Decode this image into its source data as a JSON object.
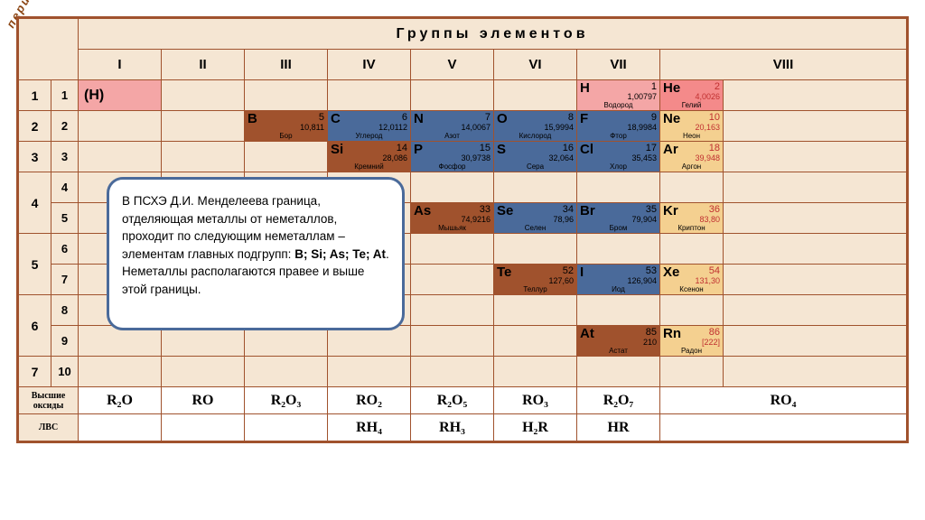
{
  "labels": {
    "period": "период",
    "groups_header": "Группы элементов",
    "oxides": "Высшие оксиды",
    "lvs": "ЛВС",
    "h_placeholder": "(H)"
  },
  "group_numerals": [
    "I",
    "II",
    "III",
    "IV",
    "V",
    "VI",
    "VII",
    "VIII"
  ],
  "period_rows": [
    {
      "p": "1",
      "r": "1"
    },
    {
      "p": "2",
      "r": "2"
    },
    {
      "p": "3",
      "r": "3"
    },
    {
      "p": "4",
      "r": [
        "4",
        "5"
      ]
    },
    {
      "p": "5",
      "r": [
        "6",
        "7"
      ]
    },
    {
      "p": "6",
      "r": [
        "8",
        "9"
      ]
    },
    {
      "p": "7",
      "r": "10"
    }
  ],
  "colors": {
    "blank": "#f5e6d3",
    "pink": "#f4a6a6",
    "brown": "#a0522d",
    "blue": "#4a6a9a",
    "noble": "#f4d090",
    "border": "#a0522d"
  },
  "callout_text": "В ПСХЭ Д.И. Менделеева граница, отделяющая металлы от неметаллов, проходит по следующим неметаллам – элементам главных подгрупп: B; Si; As; Te; At. Неметаллы располагаются правее и выше этой границы.",
  "elements": {
    "H": {
      "sym": "H",
      "num": "1",
      "mass": "1,00797",
      "name": "Водород",
      "bg": "#f4a6a6"
    },
    "He": {
      "sym": "He",
      "num": "2",
      "mass": "4,0026",
      "name": "Гелий",
      "bg": "#f48a8a",
      "noble": true
    },
    "B": {
      "sym": "B",
      "num": "5",
      "mass": "10,811",
      "name": "Бор",
      "bg": "#a0522d",
      "fg": "#000"
    },
    "C": {
      "sym": "C",
      "num": "6",
      "mass": "12,0112",
      "name": "Углерод",
      "bg": "#4a6a9a",
      "fg": "#000"
    },
    "N": {
      "sym": "N",
      "num": "7",
      "mass": "14,0067",
      "name": "Азот",
      "bg": "#4a6a9a"
    },
    "O": {
      "sym": "O",
      "num": "8",
      "mass": "15,9994",
      "name": "Кислород",
      "bg": "#4a6a9a"
    },
    "F": {
      "sym": "F",
      "num": "9",
      "mass": "18,9984",
      "name": "Фтор",
      "bg": "#4a6a9a"
    },
    "Ne": {
      "sym": "Ne",
      "num": "10",
      "mass": "20,163",
      "name": "Неон",
      "bg": "#f4d090",
      "noble": true
    },
    "Si": {
      "sym": "Si",
      "num": "14",
      "mass": "28,086",
      "name": "Кремний",
      "bg": "#a0522d"
    },
    "P": {
      "sym": "P",
      "num": "15",
      "mass": "30,9738",
      "name": "Фосфор",
      "bg": "#4a6a9a"
    },
    "S": {
      "sym": "S",
      "num": "16",
      "mass": "32,064",
      "name": "Сера",
      "bg": "#4a6a9a"
    },
    "Cl": {
      "sym": "Cl",
      "num": "17",
      "mass": "35,453",
      "name": "Хлор",
      "bg": "#4a6a9a"
    },
    "Ar": {
      "sym": "Ar",
      "num": "18",
      "mass": "39,948",
      "name": "Аргон",
      "bg": "#f4d090",
      "noble": true
    },
    "As": {
      "sym": "As",
      "num": "33",
      "mass": "74,9216",
      "name": "Мышьяк",
      "bg": "#a0522d"
    },
    "Se": {
      "sym": "Se",
      "num": "34",
      "mass": "78,96",
      "name": "Селен",
      "bg": "#4a6a9a"
    },
    "Br": {
      "sym": "Br",
      "num": "35",
      "mass": "79,904",
      "name": "Бром",
      "bg": "#4a6a9a"
    },
    "Kr": {
      "sym": "Kr",
      "num": "36",
      "mass": "83,80",
      "name": "Криптон",
      "bg": "#f4d090",
      "noble": true
    },
    "Te": {
      "sym": "Te",
      "num": "52",
      "mass": "127,60",
      "name": "Теллур",
      "bg": "#a0522d"
    },
    "I": {
      "sym": "I",
      "num": "53",
      "mass": "126,904",
      "name": "Иод",
      "bg": "#4a6a9a"
    },
    "Xe": {
      "sym": "Xe",
      "num": "54",
      "mass": "131,30",
      "name": "Ксенон",
      "bg": "#f4d090",
      "noble": true
    },
    "At": {
      "sym": "At",
      "num": "85",
      "mass": "210",
      "name": "Астат",
      "bg": "#a0522d"
    },
    "Rn": {
      "sym": "Rn",
      "num": "86",
      "mass": "[222]",
      "name": "Радон",
      "bg": "#f4d090",
      "noble": true
    }
  },
  "oxide_formulas": [
    "R₂O",
    "RO",
    "R₂O₃",
    "RO₂",
    "R₂O₅",
    "RO₃",
    "R₂O₇",
    "RO₄"
  ],
  "lvs_formulas": [
    "",
    "",
    "",
    "RH₄",
    "RH₃",
    "H₂R",
    "HR",
    ""
  ]
}
